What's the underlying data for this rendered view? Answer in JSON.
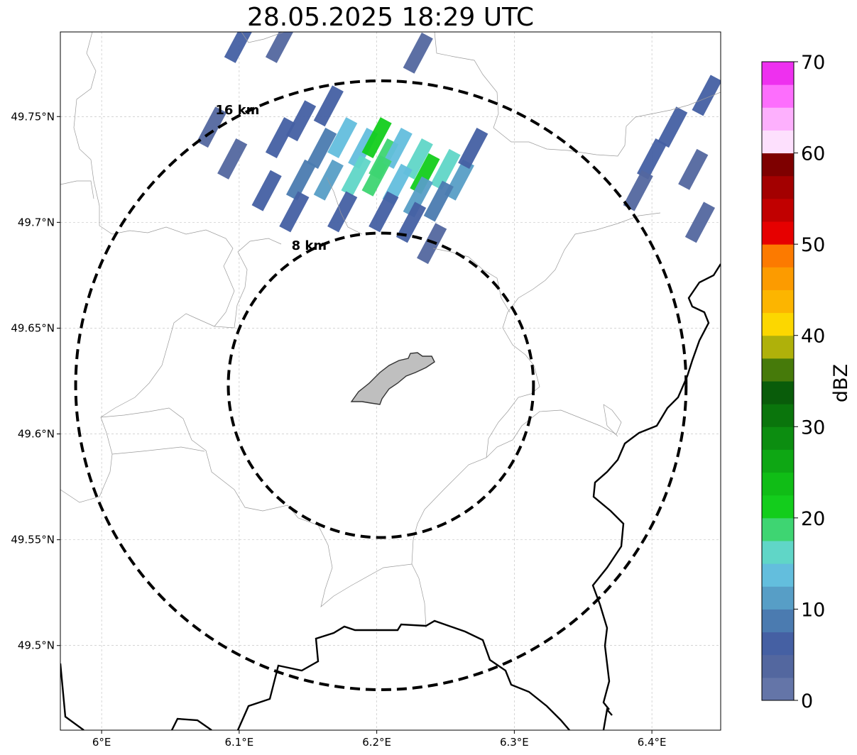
{
  "title": "28.05.2025 18:29 UTC",
  "map": {
    "lon_range": [
      5.97,
      6.45
    ],
    "lat_range": [
      49.46,
      49.79
    ],
    "lon_ticks": [
      {
        "value": 6.0,
        "label": "6°E"
      },
      {
        "value": 6.1,
        "label": "6.1°E"
      },
      {
        "value": 6.2,
        "label": "6.2°E"
      },
      {
        "value": 6.3,
        "label": "6.3°E"
      },
      {
        "value": 6.4,
        "label": "6.4°E"
      }
    ],
    "lat_ticks": [
      {
        "value": 49.5,
        "label": "49.5°N"
      },
      {
        "value": 49.55,
        "label": "49.55°N"
      },
      {
        "value": 49.6,
        "label": "49.6°N"
      },
      {
        "value": 49.65,
        "label": "49.65°N"
      },
      {
        "value": 49.7,
        "label": "49.7°N"
      },
      {
        "value": 49.75,
        "label": "49.75°N"
      }
    ],
    "grid": true,
    "center": {
      "lon": 6.203,
      "lat": 49.623
    },
    "range_rings": [
      {
        "radius_km": 8,
        "label": "8 km"
      },
      {
        "radius_km": 16,
        "label": "16 km"
      }
    ],
    "reflectivity_cells": [
      {
        "lon": 6.16,
        "lat": 49.735,
        "dbz": 8
      },
      {
        "lon": 6.175,
        "lat": 49.74,
        "dbz": 13
      },
      {
        "lon": 6.19,
        "lat": 49.735,
        "dbz": 14
      },
      {
        "lon": 6.2,
        "lat": 49.74,
        "dbz": 21
      },
      {
        "lon": 6.205,
        "lat": 49.73,
        "dbz": 18
      },
      {
        "lon": 6.215,
        "lat": 49.735,
        "dbz": 14
      },
      {
        "lon": 6.23,
        "lat": 49.73,
        "dbz": 16
      },
      {
        "lon": 6.235,
        "lat": 49.723,
        "dbz": 22
      },
      {
        "lon": 6.25,
        "lat": 49.725,
        "dbz": 17
      },
      {
        "lon": 6.26,
        "lat": 49.72,
        "dbz": 12
      },
      {
        "lon": 6.145,
        "lat": 49.72,
        "dbz": 9
      },
      {
        "lon": 6.165,
        "lat": 49.72,
        "dbz": 12
      },
      {
        "lon": 6.185,
        "lat": 49.722,
        "dbz": 15
      },
      {
        "lon": 6.2,
        "lat": 49.722,
        "dbz": 19
      },
      {
        "lon": 6.215,
        "lat": 49.718,
        "dbz": 14
      },
      {
        "lon": 6.23,
        "lat": 49.712,
        "dbz": 10
      },
      {
        "lon": 6.245,
        "lat": 49.71,
        "dbz": 8
      },
      {
        "lon": 6.13,
        "lat": 49.74,
        "dbz": 5
      },
      {
        "lon": 6.145,
        "lat": 49.748,
        "dbz": 6
      },
      {
        "lon": 6.165,
        "lat": 49.755,
        "dbz": 7
      },
      {
        "lon": 6.12,
        "lat": 49.715,
        "dbz": 6
      },
      {
        "lon": 6.14,
        "lat": 49.705,
        "dbz": 5
      },
      {
        "lon": 6.175,
        "lat": 49.705,
        "dbz": 7
      },
      {
        "lon": 6.205,
        "lat": 49.705,
        "dbz": 6
      },
      {
        "lon": 6.225,
        "lat": 49.7,
        "dbz": 5
      },
      {
        "lon": 6.24,
        "lat": 49.69,
        "dbz": 4
      },
      {
        "lon": 6.27,
        "lat": 49.735,
        "dbz": 6
      },
      {
        "lon": 6.08,
        "lat": 49.745,
        "dbz": 4
      },
      {
        "lon": 6.095,
        "lat": 49.73,
        "dbz": 3
      },
      {
        "lon": 6.1,
        "lat": 49.785,
        "dbz": 5
      },
      {
        "lon": 6.13,
        "lat": 49.785,
        "dbz": 3
      },
      {
        "lon": 6.23,
        "lat": 49.78,
        "dbz": 4
      },
      {
        "lon": 6.4,
        "lat": 49.73,
        "dbz": 5
      },
      {
        "lon": 6.415,
        "lat": 49.745,
        "dbz": 6
      },
      {
        "lon": 6.43,
        "lat": 49.725,
        "dbz": 4
      },
      {
        "lon": 6.44,
        "lat": 49.76,
        "dbz": 5
      },
      {
        "lon": 6.435,
        "lat": 49.7,
        "dbz": 3
      },
      {
        "lon": 6.39,
        "lat": 49.715,
        "dbz": 4
      }
    ]
  },
  "colorbar": {
    "label": "dBZ",
    "min": 0,
    "max": 70,
    "tick_labels": [
      "0",
      "10",
      "20",
      "30",
      "40",
      "50",
      "60",
      "70"
    ],
    "colors": [
      "#6475a8",
      "#53679f",
      "#4560a3",
      "#4b7bb0",
      "#579ec6",
      "#63bedd",
      "#60d6c7",
      "#3ed572",
      "#13cd1c",
      "#10bd16",
      "#0ea714",
      "#0c8d10",
      "#0a750c",
      "#095c0a",
      "#467a0a",
      "#afb10a",
      "#fcd700",
      "#fcb500",
      "#fc9b00",
      "#fc7a00",
      "#e60000",
      "#c10000",
      "#a30000",
      "#7e0000",
      "#fde0fd",
      "#fdb0fd",
      "#fd6efd",
      "#ee30ef"
    ]
  }
}
